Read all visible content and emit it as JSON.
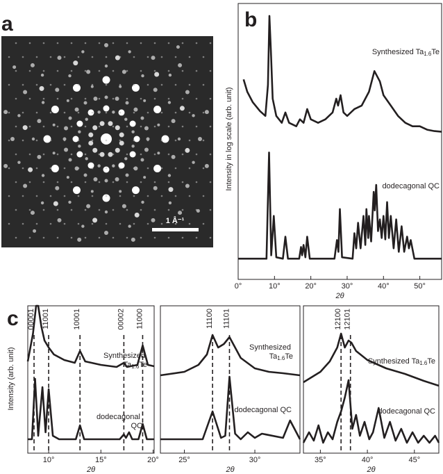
{
  "chart_data": [
    {
      "type": "image",
      "panel_label": "a",
      "scale_bar": "1 Å⁻¹"
    },
    {
      "type": "line",
      "panel_label": "b",
      "xlabel": "2θ",
      "ylabel": "Intensity in log scale (arb. unit)",
      "xlim": [
        0,
        56
      ],
      "ylim": [
        0,
        400
      ],
      "xticks": [
        {
          "value": 0,
          "label": "0°"
        },
        {
          "value": 10,
          "label": "10°"
        },
        {
          "value": 20,
          "label": "20°"
        },
        {
          "value": 30,
          "label": "30°"
        },
        {
          "value": 40,
          "label": "40°"
        },
        {
          "value": 50,
          "label": "50°"
        }
      ],
      "series": [
        {
          "name": "Synthesized Ta1.6Te",
          "color": "#231f20",
          "x": [
            1.5,
            2.5,
            4,
            6,
            7.5,
            8.2,
            8.6,
            9,
            9.5,
            10.5,
            12,
            13,
            14,
            16,
            17,
            18,
            19,
            20,
            22,
            24,
            26,
            27,
            27.5,
            28.2,
            29,
            30,
            32,
            34,
            36,
            37.5,
            38,
            39,
            40,
            42,
            44,
            46,
            48,
            50,
            52,
            54,
            56
          ],
          "values": [
            290,
            272,
            257,
            244,
            237,
            282,
            382,
            332,
            262,
            237,
            227,
            242,
            227,
            222,
            232,
            227,
            247,
            232,
            227,
            232,
            242,
            262,
            252,
            267,
            242,
            237,
            247,
            252,
            272,
            302,
            297,
            287,
            267,
            252,
            237,
            227,
            222,
            222,
            217,
            215,
            214
          ]
        },
        {
          "name": "dodecagonal QC",
          "color": "#231f20",
          "x": [
            0,
            7.8,
            8.5,
            9.1,
            9.8,
            10.5,
            12.3,
            13,
            13.7,
            16.8,
            17.3,
            17.6,
            18,
            18.5,
            19,
            19.7,
            26.5,
            27.2,
            27.6,
            28,
            28.6,
            31.5,
            32,
            32.5,
            33,
            33.7,
            34.5,
            35,
            35.3,
            35.8,
            36,
            36.6,
            37.3,
            37.6,
            38,
            38.5,
            39,
            39.5,
            40,
            40.5,
            41,
            41.5,
            42,
            42.8,
            43.5,
            44.2,
            45,
            45.7,
            46.5,
            47,
            47.5,
            48.5,
            56
          ],
          "values": [
            30,
            30,
            184,
            35,
            92,
            32,
            30,
            62,
            30,
            30,
            47,
            35,
            50,
            32,
            62,
            30,
            30,
            57,
            40,
            102,
            32,
            30,
            67,
            45,
            82,
            45,
            92,
            50,
            102,
            60,
            92,
            55,
            127,
            100,
            137,
            70,
            87,
            60,
            92,
            58,
            112,
            60,
            92,
            45,
            87,
            40,
            77,
            40,
            62,
            45,
            57,
            30,
            30
          ]
        }
      ]
    },
    {
      "type": "line",
      "panel_label": "c",
      "xlabel": "2θ",
      "ylabel": "Intensity (arb. unit)",
      "xlim": [
        8,
        20.1
      ],
      "ylim": [
        0,
        212
      ],
      "xticks": [
        {
          "value": 10,
          "label": "10°"
        },
        {
          "value": 15,
          "label": "15°"
        },
        {
          "value": 20,
          "label": "20°"
        }
      ],
      "peaks": [
        {
          "x": 8.6,
          "label": "00001"
        },
        {
          "x": 10,
          "label": "11001"
        },
        {
          "x": 13,
          "label": "10001"
        },
        {
          "x": 17.2,
          "label": "00002"
        },
        {
          "x": 19,
          "label": "11000"
        }
      ],
      "series": [
        {
          "name": "Synthesized Ta1.6Te",
          "color": "#231f20",
          "x": [
            8,
            8.5,
            8.8,
            9,
            9.3,
            9.6,
            10,
            10.5,
            11.5,
            12.5,
            13,
            13.5,
            15,
            16.5,
            17.2,
            17.5,
            18.5,
            19,
            19.5,
            20.1
          ],
          "values": [
            132,
            172,
            212,
            212,
            182,
            162,
            152,
            142,
            134,
            130,
            147,
            132,
            127,
            124,
            130,
            124,
            127,
            155,
            127,
            125
          ]
        },
        {
          "name": "dodecagonal QC",
          "color": "#231f20",
          "x": [
            8,
            8.4,
            8.7,
            9,
            9.4,
            9.7,
            10,
            10.4,
            11,
            12.6,
            13,
            13.4,
            16.8,
            17.2,
            17.4,
            17.7,
            18,
            18.6,
            19,
            19.4,
            20.1
          ],
          "values": [
            20,
            20,
            107,
            25,
            95,
            30,
            92,
            25,
            20,
            20,
            40,
            20,
            20,
            27,
            22,
            30,
            20,
            20,
            42,
            20,
            20
          ]
        }
      ]
    },
    {
      "type": "line",
      "xlabel": "2θ",
      "xlim": [
        23.3,
        33.2
      ],
      "ylim": [
        0,
        212
      ],
      "xticks": [
        {
          "value": 25,
          "label": "25°"
        },
        {
          "value": 30,
          "label": "30°"
        }
      ],
      "peaks": [
        {
          "x": 27,
          "label": "11100"
        },
        {
          "x": 28.2,
          "label": "11101"
        }
      ],
      "series": [
        {
          "name": "Synthesized Ta1.6Te",
          "color": "#231f20",
          "x": [
            23.3,
            25,
            26,
            26.6,
            27,
            27.4,
            27.8,
            28.2,
            28.6,
            29,
            30,
            31,
            32,
            33.2
          ],
          "values": [
            112,
            117,
            127,
            142,
            170,
            152,
            157,
            167,
            152,
            137,
            122,
            117,
            115,
            112
          ]
        },
        {
          "name": "dodecagonal QC",
          "color": "#231f20",
          "x": [
            23.3,
            26.3,
            27,
            27.6,
            27.9,
            28.2,
            28.6,
            29,
            29.5,
            30,
            30.5,
            32,
            32.5,
            33.2
          ],
          "values": [
            20,
            20,
            60,
            22,
            25,
            110,
            28,
            20,
            30,
            22,
            28,
            22,
            47,
            20
          ]
        }
      ]
    },
    {
      "type": "line",
      "xlabel": "2θ",
      "xlim": [
        33.2,
        47.6
      ],
      "ylim": [
        0,
        212
      ],
      "xticks": [
        {
          "value": 35,
          "label": "35°"
        },
        {
          "value": 40,
          "label": "40°"
        },
        {
          "value": 45,
          "label": "45°"
        }
      ],
      "peaks": [
        {
          "x": 37.2,
          "label": "12100"
        },
        {
          "x": 38.2,
          "label": "12101"
        }
      ],
      "series": [
        {
          "name": "Synthesized Ta1.6Te",
          "color": "#231f20",
          "x": [
            33.2,
            35,
            36,
            36.8,
            37.2,
            37.6,
            38,
            38.3,
            38.8,
            40,
            42,
            44,
            46,
            47.6
          ],
          "values": [
            102,
            117,
            132,
            152,
            172,
            152,
            162,
            159,
            147,
            134,
            122,
            114,
            104,
            97
          ]
        },
        {
          "name": "dodecagonal QC",
          "color": "#231f20",
          "x": [
            33.2,
            33.8,
            34.3,
            34.8,
            35.3,
            35.8,
            36.3,
            36.8,
            37.2,
            37.6,
            38,
            38.4,
            38.8,
            39.2,
            39.7,
            40.2,
            40.6,
            41.2,
            41.8,
            42.4,
            43,
            43.6,
            44.2,
            44.8,
            45.4,
            46,
            46.6,
            47.2,
            47.6
          ],
          "values": [
            15,
            30,
            18,
            40,
            15,
            30,
            20,
            45,
            60,
            80,
            105,
            35,
            55,
            25,
            45,
            20,
            30,
            65,
            22,
            45,
            18,
            35,
            15,
            30,
            15,
            25,
            15,
            25,
            15
          ]
        }
      ]
    }
  ]
}
